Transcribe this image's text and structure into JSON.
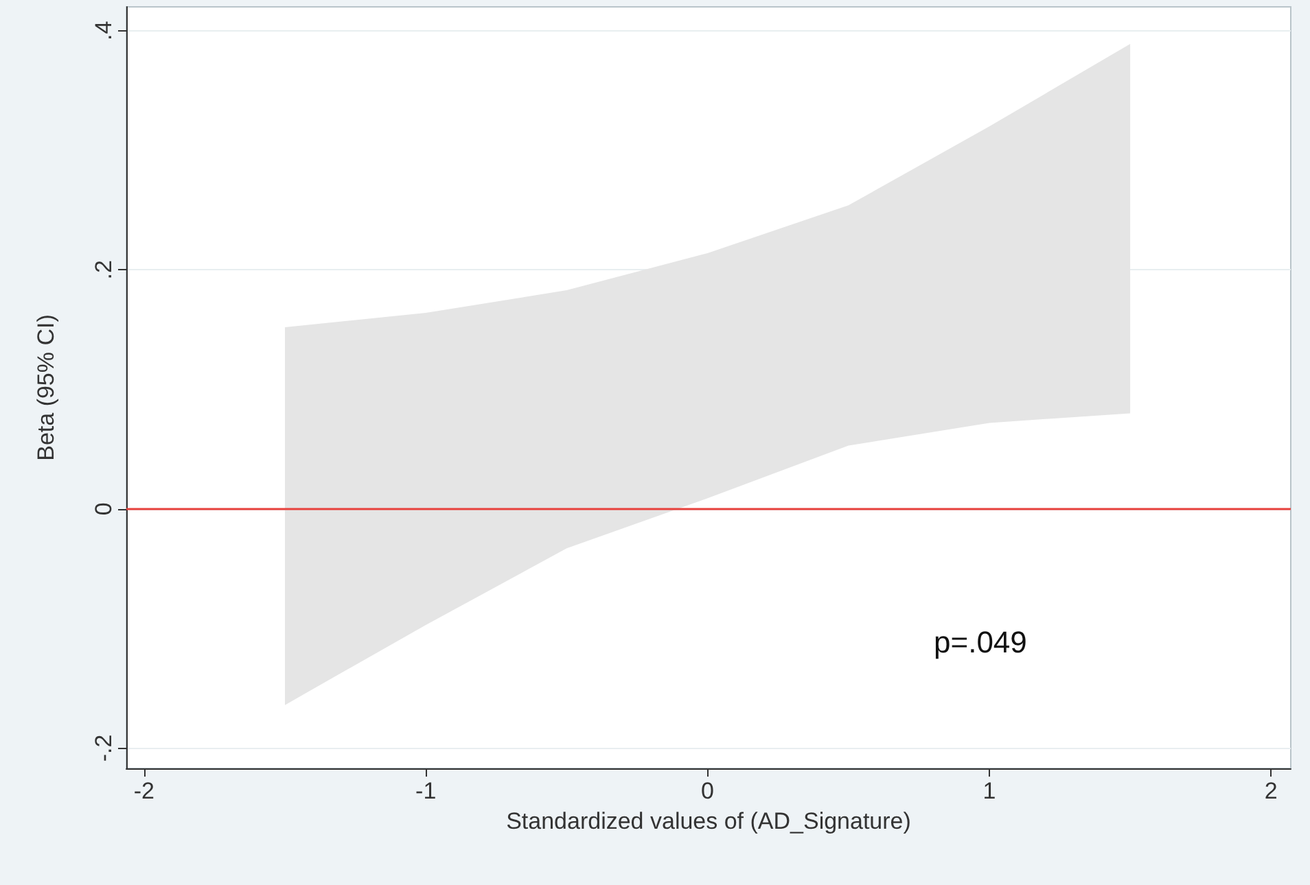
{
  "chart_data": {
    "type": "line",
    "xlabel": "Standardized values of (AD_Signature)",
    "ylabel": "Beta (95% CI)",
    "xlim": [
      -2.063,
      2.07
    ],
    "ylim": [
      -0.217,
      0.42
    ],
    "xticks": [
      -2,
      -1,
      0,
      1,
      2
    ],
    "yticks": [
      {
        "value": -0.2,
        "label": "-.2"
      },
      {
        "value": 0,
        "label": "0"
      },
      {
        "value": 0.2,
        "label": ".2"
      },
      {
        "value": 0.4,
        "label": ".4"
      }
    ],
    "grid": "y",
    "series": [
      {
        "color": "#e5e5e5",
        "x": [
          -1.5,
          -1,
          -0.5,
          0,
          0.5,
          1,
          1.5
        ],
        "values": [
          null,
          null,
          null,
          null,
          null,
          null,
          null
        ],
        "lower": [
          -0.164,
          -0.097,
          -0.033,
          0.009,
          0.053,
          0.072,
          0.08
        ],
        "upper": [
          0.152,
          0.164,
          0.183,
          0.214,
          0.254,
          0.32,
          0.389
        ]
      }
    ],
    "ref_lines": [
      {
        "axis": "y",
        "value": 0,
        "color": "#e8413c",
        "line_style": "solid"
      }
    ],
    "annotations": [
      "p=.049"
    ]
  }
}
